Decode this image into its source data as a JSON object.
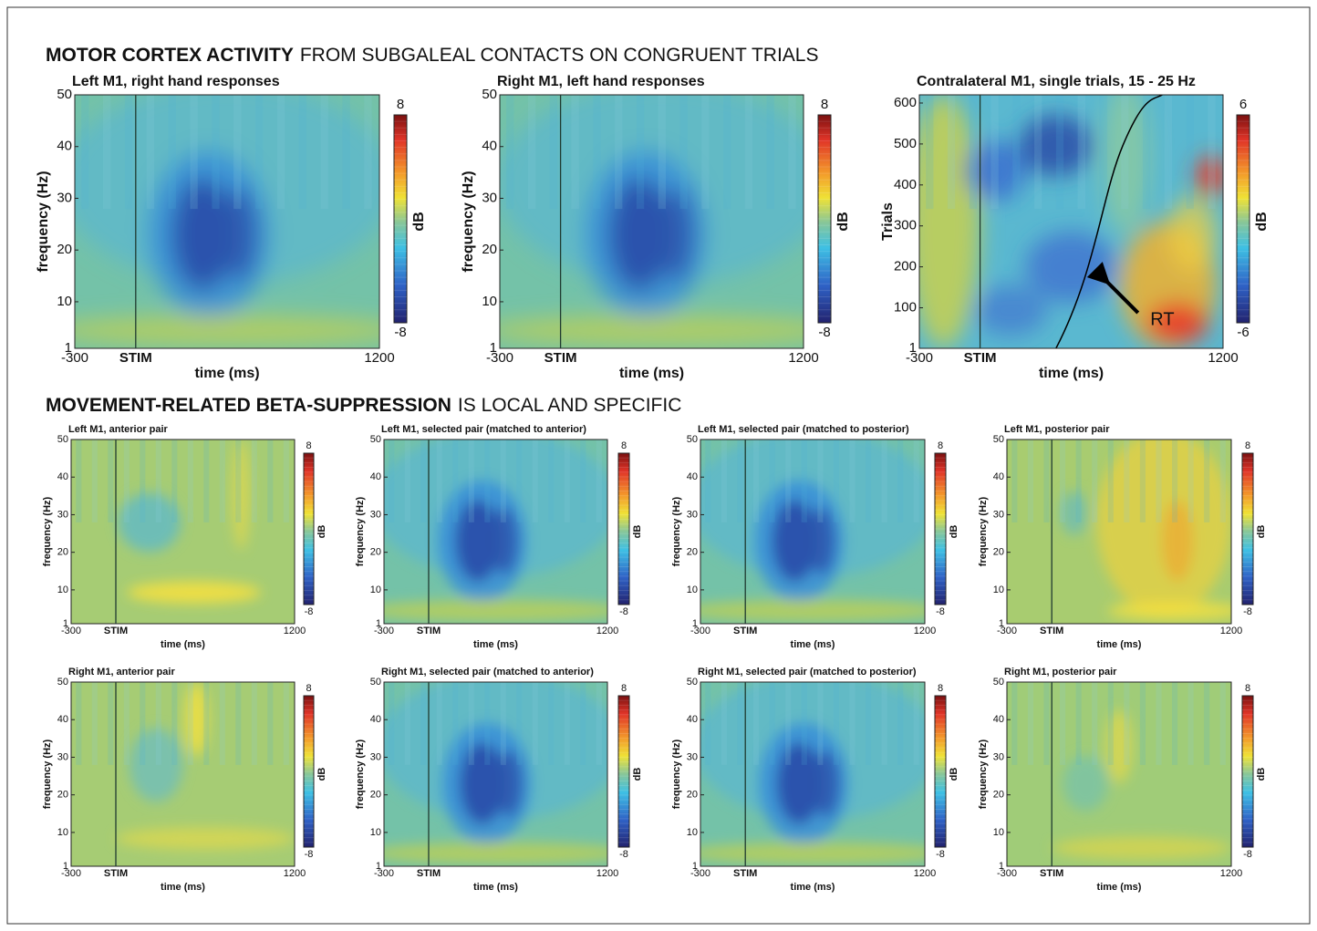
{
  "sections": [
    {
      "title_bold": "MOTOR CORTEX ACTIVITY",
      "title_rest": "FROM SUBGALEAL CONTACTS ON CONGRUENT TRIALS",
      "panels": [
        {
          "title": "Left M1, right hand responses",
          "xlabel": "time (ms)",
          "ylabel": "frequency (Hz)",
          "xlim": [
            -300,
            1200
          ],
          "xticks": [
            -300,
            1200
          ],
          "stim": {
            "value": 0,
            "label": "STIM"
          },
          "ylim": [
            1,
            50
          ],
          "yticks": [
            1,
            10,
            20,
            30,
            40,
            50
          ],
          "cbar_ticks": [
            -8,
            8
          ],
          "cbar_label": "dB"
        },
        {
          "title": "Right M1, left hand responses",
          "xlabel": "time (ms)",
          "ylabel": "frequency (Hz)",
          "xlim": [
            -300,
            1200
          ],
          "xticks": [
            -300,
            1200
          ],
          "stim": {
            "value": 0,
            "label": "STIM"
          },
          "ylim": [
            1,
            50
          ],
          "yticks": [
            1,
            10,
            20,
            30,
            40,
            50
          ],
          "cbar_ticks": [
            -8,
            8
          ],
          "cbar_label": "dB"
        },
        {
          "title": "Contralateral M1, single trials, 15 - 25 Hz",
          "xlabel": "time (ms)",
          "ylabel": "Trials",
          "xlim": [
            -300,
            1200
          ],
          "xticks": [
            -300,
            1200
          ],
          "stim": {
            "value": 0,
            "label": "STIM"
          },
          "ylim": [
            1,
            620
          ],
          "yticks": [
            1,
            100,
            200,
            300,
            400,
            500,
            600
          ],
          "cbar_ticks": [
            -6,
            6
          ],
          "cbar_label": "dB",
          "annotation": "RT"
        }
      ]
    },
    {
      "title_bold": "MOVEMENT-RELATED BETA-SUPPRESSION",
      "title_rest": "IS LOCAL AND SPECIFIC",
      "panels": [
        {
          "title": "Left M1, anterior pair",
          "xlabel": "time (ms)",
          "ylabel": "frequency (Hz)",
          "xlim": [
            -300,
            1200
          ],
          "xticks": [
            -300,
            1200
          ],
          "stim": {
            "value": 0,
            "label": "STIM"
          },
          "ylim": [
            1,
            50
          ],
          "yticks": [
            1,
            10,
            20,
            30,
            40,
            50
          ],
          "cbar_ticks": [
            -8,
            8
          ],
          "cbar_label": "dB"
        },
        {
          "title": "Left M1, selected pair (matched to anterior)",
          "xlabel": "time (ms)",
          "ylabel": "frequency (Hz)",
          "xlim": [
            -300,
            1200
          ],
          "xticks": [
            -300,
            1200
          ],
          "stim": {
            "value": 0,
            "label": "STIM"
          },
          "ylim": [
            1,
            50
          ],
          "yticks": [
            1,
            10,
            20,
            30,
            40,
            50
          ],
          "cbar_ticks": [
            -8,
            8
          ],
          "cbar_label": "dB"
        },
        {
          "title": "Left M1, selected pair (matched to posterior)",
          "xlabel": "time (ms)",
          "ylabel": "frequency (Hz)",
          "xlim": [
            -300,
            1200
          ],
          "xticks": [
            -300,
            1200
          ],
          "stim": {
            "value": 0,
            "label": "STIM"
          },
          "ylim": [
            1,
            50
          ],
          "yticks": [
            1,
            10,
            20,
            30,
            40,
            50
          ],
          "cbar_ticks": [
            -8,
            8
          ],
          "cbar_label": "dB"
        },
        {
          "title": "Left M1, posterior pair",
          "xlabel": "time (ms)",
          "ylabel": "frequency (Hz)",
          "xlim": [
            -300,
            1200
          ],
          "xticks": [
            -300,
            1200
          ],
          "stim": {
            "value": 0,
            "label": "STIM"
          },
          "ylim": [
            1,
            50
          ],
          "yticks": [
            1,
            10,
            20,
            30,
            40,
            50
          ],
          "cbar_ticks": [
            -8,
            8
          ],
          "cbar_label": "dB"
        },
        {
          "title": "Right M1, anterior pair",
          "xlabel": "time (ms)",
          "ylabel": "frequency (Hz)",
          "xlim": [
            -300,
            1200
          ],
          "xticks": [
            -300,
            1200
          ],
          "stim": {
            "value": 0,
            "label": "STIM"
          },
          "ylim": [
            1,
            50
          ],
          "yticks": [
            1,
            10,
            20,
            30,
            40,
            50
          ],
          "cbar_ticks": [
            -8,
            8
          ],
          "cbar_label": "dB"
        },
        {
          "title": "Right M1, selected pair (matched to anterior)",
          "xlabel": "time (ms)",
          "ylabel": "frequency (Hz)",
          "xlim": [
            -300,
            1200
          ],
          "xticks": [
            -300,
            1200
          ],
          "stim": {
            "value": 0,
            "label": "STIM"
          },
          "ylim": [
            1,
            50
          ],
          "yticks": [
            1,
            10,
            20,
            30,
            40,
            50
          ],
          "cbar_ticks": [
            -8,
            8
          ],
          "cbar_label": "dB"
        },
        {
          "title": "Right M1, selected pair (matched to posterior)",
          "xlabel": "time (ms)",
          "ylabel": "frequency (Hz)",
          "xlim": [
            -300,
            1200
          ],
          "xticks": [
            -300,
            1200
          ],
          "stim": {
            "value": 0,
            "label": "STIM"
          },
          "ylim": [
            1,
            50
          ],
          "yticks": [
            1,
            10,
            20,
            30,
            40,
            50
          ],
          "cbar_ticks": [
            -8,
            8
          ],
          "cbar_label": "dB"
        },
        {
          "title": "Right M1, posterior pair",
          "xlabel": "time (ms)",
          "ylabel": "frequency (Hz)",
          "xlim": [
            -300,
            1200
          ],
          "xticks": [
            -300,
            1200
          ],
          "stim": {
            "value": 0,
            "label": "STIM"
          },
          "ylim": [
            1,
            50
          ],
          "yticks": [
            1,
            10,
            20,
            30,
            40,
            50
          ],
          "cbar_ticks": [
            -8,
            8
          ],
          "cbar_label": "dB"
        }
      ]
    }
  ]
}
